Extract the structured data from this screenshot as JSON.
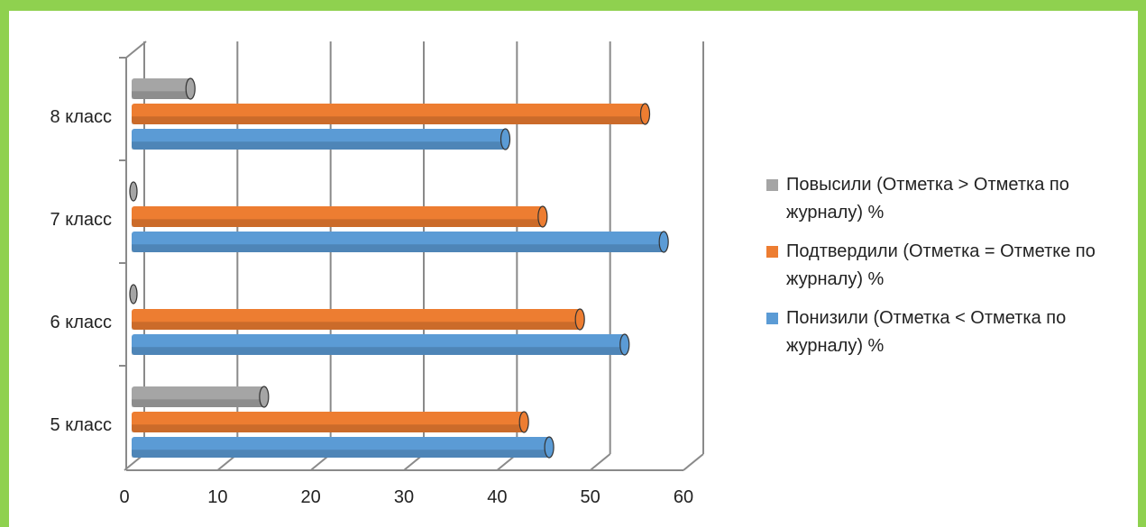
{
  "chart_data": {
    "type": "bar",
    "orientation": "horizontal",
    "categories": [
      "5 класс",
      "6 класс",
      "7 класс",
      "8 класс"
    ],
    "series": [
      {
        "name": "Повысили (Отметка > Отметка по журналу) %",
        "color": "#a5a5a5",
        "values": [
          14.6,
          0,
          0,
          6.7
        ]
      },
      {
        "name": "Подтвердили (Отметка = Отметке по журналу) %",
        "color": "#ed7d31",
        "values": [
          42.5,
          48.5,
          44.5,
          55.5
        ]
      },
      {
        "name": "Понизили (Отметка < Отметка по журналу) %",
        "color": "#5b9bd5",
        "values": [
          45.2,
          53.3,
          57.5,
          40.5
        ]
      }
    ],
    "x_ticks": [
      "0",
      "10",
      "20",
      "30",
      "40",
      "50",
      "60"
    ],
    "xlim": [
      0,
      60
    ],
    "grid": true,
    "legend_position": "right",
    "title": "",
    "xlabel": "",
    "ylabel": ""
  }
}
